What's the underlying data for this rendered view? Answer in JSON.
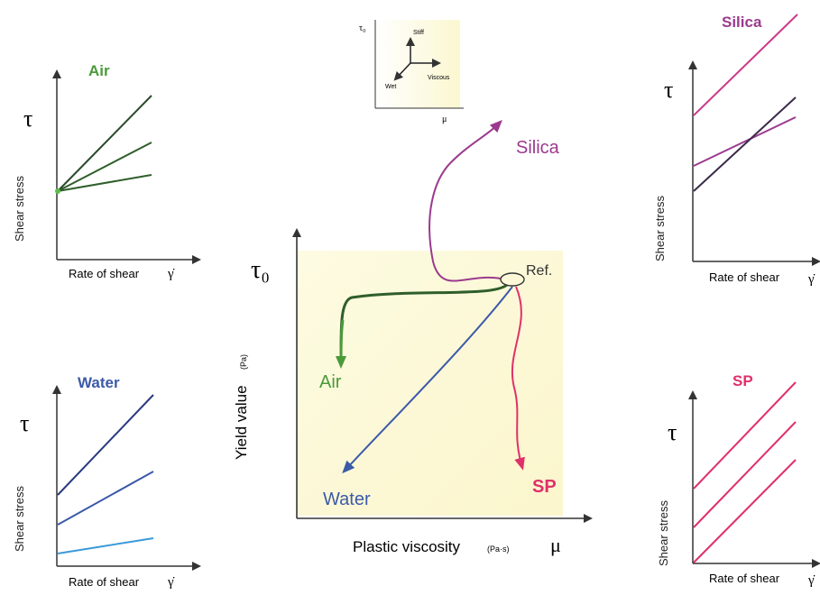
{
  "colors": {
    "air": "#4a9a3a",
    "water": "#3b5aa8",
    "water_light": "#3a9ad8",
    "silica": "#9b3a8e",
    "sp": "#e0306a",
    "axis": "#333333",
    "dark_line": "#2a2a2a"
  },
  "inset": {
    "y_label": "τ₀",
    "x_label": "μ",
    "stiff": "Stiff",
    "viscous": "Viscous",
    "wet": "Wet"
  },
  "main": {
    "y_symbol": "τ₀",
    "y_label": "Yield value",
    "y_unit": "(Pa)",
    "x_label": "Plastic viscosity",
    "x_unit": "(Pa·s)",
    "x_symbol": "μ",
    "ref_label": "Ref.",
    "paths": {
      "air": "Air",
      "water": "Water",
      "silica": "Silica",
      "sp": "SP"
    }
  },
  "panels": {
    "air": {
      "title": "Air",
      "tau": "τ",
      "ylabel": "Shear stress",
      "xlabel": "Rate of shear",
      "gamma": "γ̇"
    },
    "water": {
      "title": "Water",
      "tau": "τ",
      "ylabel": "Shear stress",
      "xlabel": "Rate of shear",
      "gamma": "γ̇"
    },
    "silica": {
      "title": "Silica",
      "tau": "τ",
      "ylabel": "Shear stress",
      "xlabel": "Rate of shear",
      "gamma": "γ̇"
    },
    "sp": {
      "title": "SP",
      "tau": "τ",
      "ylabel": "Shear stress",
      "xlabel": "Rate of shear",
      "gamma": "γ̇"
    }
  }
}
